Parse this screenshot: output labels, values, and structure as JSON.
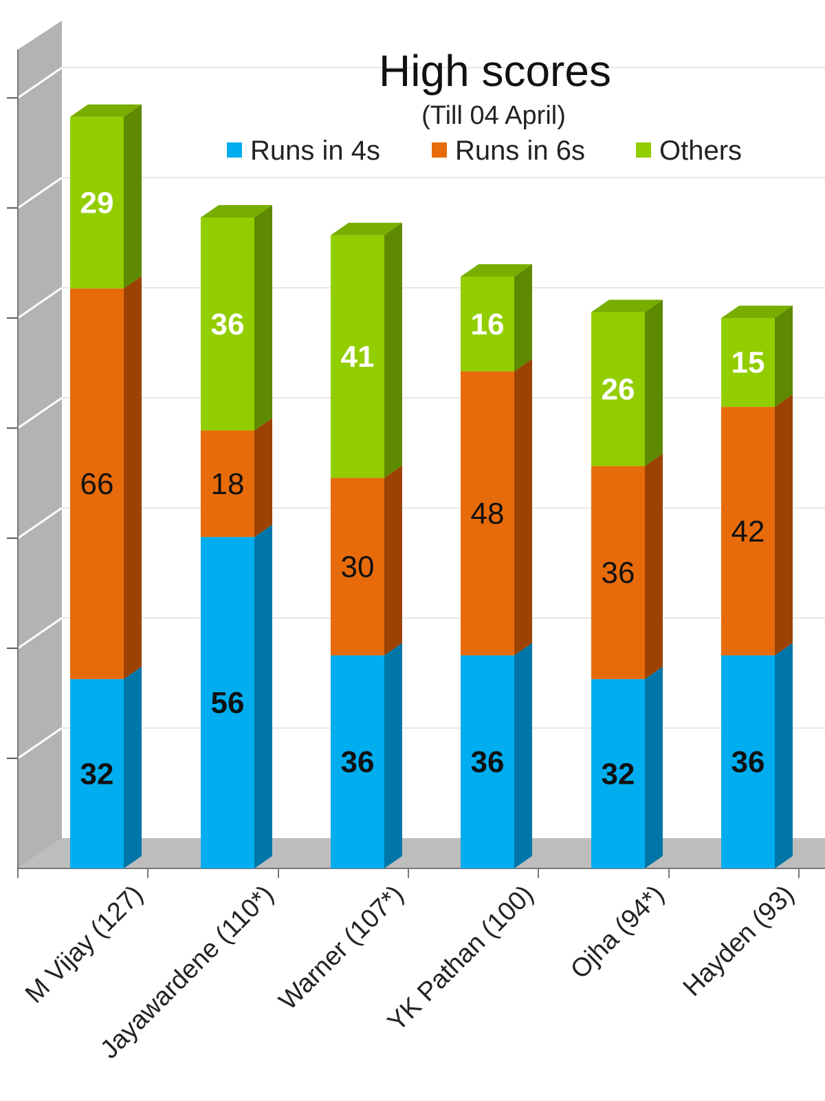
{
  "chart_data": {
    "type": "bar",
    "stacked": true,
    "title": "High scores",
    "subtitle": "(Till 04 April)",
    "xlabel": "",
    "ylabel": "",
    "ylim": [
      0,
      140
    ],
    "grid": true,
    "legend_position": "top",
    "categories": [
      "M Vijay (127)",
      "Jayawardene (110*)",
      "Warner (107*)",
      "YK Pathan (100)",
      "Ojha (94*)",
      "Hayden (93)"
    ],
    "series": [
      {
        "name": "Runs in 4s",
        "color": "#00adef",
        "values": [
          32,
          56,
          36,
          36,
          32,
          36
        ],
        "label_color": "#111111"
      },
      {
        "name": "Runs in 6s",
        "color": "#e76b0a",
        "values": [
          66,
          18,
          30,
          48,
          36,
          42
        ],
        "label_color": "#111111"
      },
      {
        "name": "Others",
        "color": "#92cd00",
        "values": [
          29,
          36,
          41,
          16,
          26,
          15
        ],
        "label_color": "#ffffff"
      }
    ]
  },
  "colors": {
    "side_4s": "#0076a8",
    "side_6s": "#9c4303",
    "side_others": "#5d8a00",
    "top_others": "#79ad00",
    "wall": "#b3b3b3",
    "floor": "#bdbdbd"
  }
}
